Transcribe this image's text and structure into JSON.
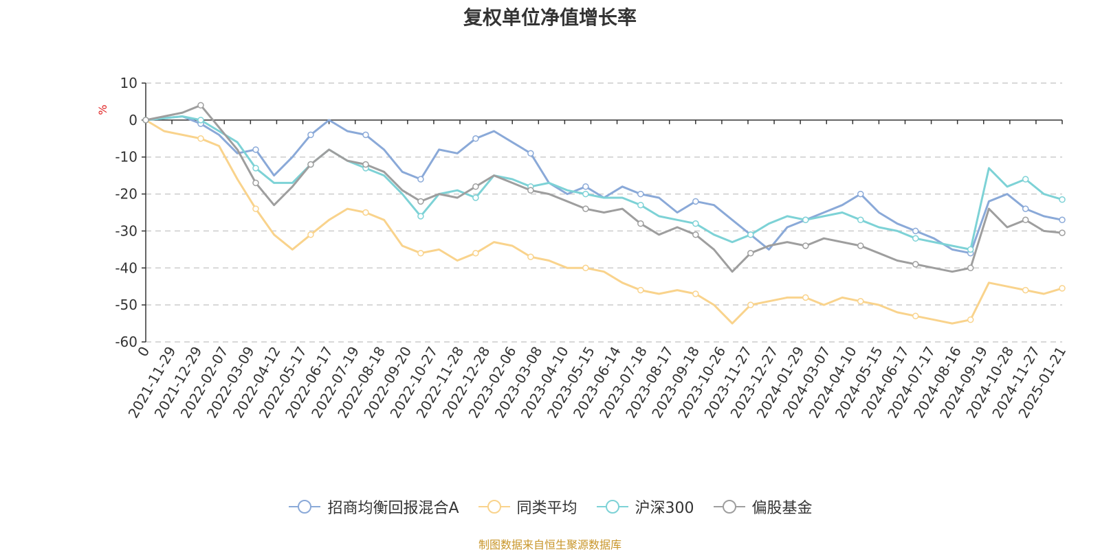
{
  "chart_data": {
    "type": "line",
    "title": "复权单位净值增长率",
    "ylabel": "%",
    "xlabel": "",
    "ylim": [
      -60,
      10
    ],
    "yticks": [
      10,
      0,
      -10,
      -20,
      -30,
      -40,
      -50,
      -60
    ],
    "x_ticks": [
      "0",
      "2021-11-29",
      "2021-12-29",
      "2022-02-07",
      "2022-03-09",
      "2022-04-12",
      "2022-05-17",
      "2022-06-17",
      "2022-07-19",
      "2022-08-18",
      "2022-09-20",
      "2022-10-27",
      "2022-11-28",
      "2022-12-28",
      "2023-02-06",
      "2023-03-08",
      "2023-04-10",
      "2023-05-15",
      "2023-06-14",
      "2023-07-18",
      "2023-08-17",
      "2023-09-18",
      "2023-10-26",
      "2023-11-27",
      "2023-12-27",
      "2024-01-29",
      "2024-03-07",
      "2024-04-10",
      "2024-05-15",
      "2024-06-17",
      "2024-07-17",
      "2024-08-16",
      "2024-09-19",
      "2024-10-28",
      "2024-11-27",
      "2025-01-21"
    ],
    "series": [
      {
        "name": "招商均衡回报混合A",
        "color": "#8aa9d8",
        "values": [
          0,
          0.5,
          1,
          -1,
          -4,
          -9,
          -8,
          -15,
          -10,
          -4,
          0,
          -3,
          -4,
          -8,
          -14,
          -16,
          -8,
          -9,
          -5,
          -3,
          -6,
          -9,
          -17,
          -20,
          -18,
          -21,
          -18,
          -20,
          -21,
          -25,
          -22,
          -23,
          -27,
          -31,
          -35,
          -29,
          -27,
          -25,
          -23,
          -20,
          -25,
          -28,
          -30,
          -32,
          -35,
          -36,
          -22,
          -20,
          -24,
          -26,
          -27
        ]
      },
      {
        "name": "同类平均",
        "color": "#f9d38c",
        "values": [
          0,
          -3,
          -4,
          -5,
          -7,
          -16,
          -24,
          -31,
          -35,
          -31,
          -27,
          -24,
          -25,
          -27,
          -34,
          -36,
          -35,
          -38,
          -36,
          -33,
          -34,
          -37,
          -38,
          -40,
          -40,
          -41,
          -44,
          -46,
          -47,
          -46,
          -47,
          -50,
          -55,
          -50,
          -49,
          -48,
          -48,
          -50,
          -48,
          -49,
          -50,
          -52,
          -53,
          -54,
          -55,
          -54,
          -44,
          -45,
          -46,
          -47,
          -45.5
        ]
      },
      {
        "name": "沪深300",
        "color": "#7dd2d6",
        "values": [
          0,
          0.5,
          1,
          0,
          -3,
          -6,
          -13,
          -17,
          -17,
          -12,
          -8,
          -11,
          -13,
          -15,
          -20,
          -26,
          -20,
          -19,
          -21,
          -15,
          -16,
          -18,
          -17,
          -19,
          -20,
          -21,
          -21,
          -23,
          -26,
          -27,
          -28,
          -31,
          -33,
          -31,
          -28,
          -26,
          -27,
          -26,
          -25,
          -27,
          -29,
          -30,
          -32,
          -33,
          -34,
          -35,
          -13,
          -18,
          -16,
          -20,
          -21.5
        ]
      },
      {
        "name": "偏股基金",
        "color": "#9e9e9e",
        "values": [
          0,
          1,
          2,
          4,
          -2,
          -8,
          -17,
          -23,
          -18,
          -12,
          -8,
          -11,
          -12,
          -14,
          -19,
          -22,
          -20,
          -21,
          -18,
          -15,
          -17,
          -19,
          -20,
          -22,
          -24,
          -25,
          -24,
          -28,
          -31,
          -29,
          -31,
          -35,
          -41,
          -36,
          -34,
          -33,
          -34,
          -32,
          -33,
          -34,
          -36,
          -38,
          -39,
          -40,
          -41,
          -40,
          -24,
          -29,
          -27,
          -30,
          -30.5
        ]
      }
    ]
  },
  "legend": {
    "items": [
      {
        "label": "招商均衡回报混合A",
        "color": "#8aa9d8"
      },
      {
        "label": "同类平均",
        "color": "#f9d38c"
      },
      {
        "label": "沪深300",
        "color": "#7dd2d6"
      },
      {
        "label": "偏股基金",
        "color": "#9e9e9e"
      }
    ]
  },
  "source_text": "制图数据来自恒生聚源数据库"
}
